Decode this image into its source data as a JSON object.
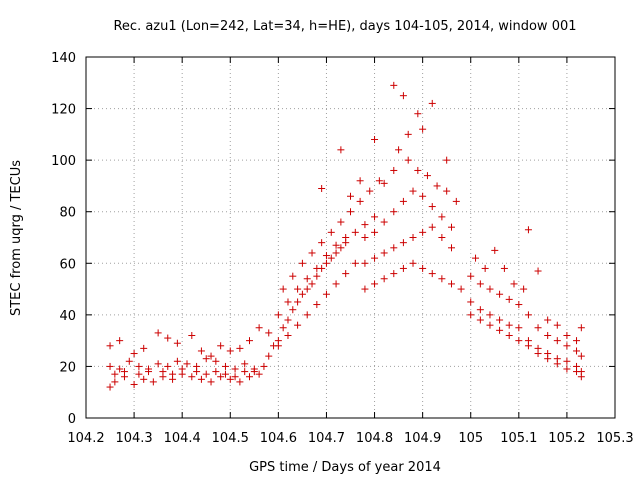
{
  "chart_data": {
    "type": "scatter",
    "title": "Rec. azu1 (Lon=242, Lat=34, h=HE), days 104-105, 2014, window 001",
    "xlabel": "GPS time / Days of year 2014",
    "ylabel": "STEC from uqrg / TECUs",
    "xlim": [
      104.2,
      105.3
    ],
    "ylim": [
      0,
      140
    ],
    "xticks": [
      104.2,
      104.3,
      104.4,
      104.5,
      104.6,
      104.7,
      104.8,
      104.9,
      105,
      105.1,
      105.2,
      105.3
    ],
    "xtick_labels": [
      "104.2",
      "104.3",
      "104.4",
      "104.5",
      "104.6",
      "104.7",
      "104.8",
      "104.9",
      "105",
      "105.1",
      "105.2",
      "105.3"
    ],
    "yticks": [
      0,
      20,
      40,
      60,
      80,
      100,
      120,
      140
    ],
    "ytick_labels": [
      "0",
      "20",
      "40",
      "60",
      "80",
      "100",
      "120",
      "140"
    ],
    "grid": true,
    "marker": "+",
    "color": "#cc0000",
    "series": [
      {
        "points": [
          [
            104.25,
            12
          ],
          [
            104.26,
            14
          ],
          [
            104.28,
            16
          ],
          [
            104.3,
            13
          ],
          [
            104.32,
            15
          ],
          [
            104.34,
            14
          ],
          [
            104.36,
            16
          ],
          [
            104.38,
            15
          ],
          [
            104.4,
            17
          ],
          [
            104.42,
            16
          ],
          [
            104.44,
            15
          ],
          [
            104.46,
            14
          ],
          [
            104.48,
            16
          ],
          [
            104.5,
            15
          ],
          [
            104.52,
            14
          ],
          [
            104.54,
            16
          ],
          [
            104.56,
            17
          ],
          [
            104.57,
            20
          ],
          [
            104.58,
            24
          ],
          [
            104.59,
            28
          ],
          [
            104.25,
            20
          ],
          [
            104.27,
            19
          ],
          [
            104.29,
            22
          ],
          [
            104.31,
            20
          ],
          [
            104.33,
            18
          ],
          [
            104.35,
            21
          ],
          [
            104.37,
            20
          ],
          [
            104.39,
            22
          ],
          [
            104.41,
            21
          ],
          [
            104.43,
            20
          ],
          [
            104.45,
            23
          ],
          [
            104.47,
            22
          ],
          [
            104.49,
            20
          ],
          [
            104.51,
            19
          ],
          [
            104.53,
            21
          ],
          [
            104.55,
            18
          ],
          [
            104.25,
            28
          ],
          [
            104.27,
            30
          ],
          [
            104.3,
            25
          ],
          [
            104.32,
            27
          ],
          [
            104.35,
            33
          ],
          [
            104.37,
            31
          ],
          [
            104.39,
            29
          ],
          [
            104.42,
            32
          ],
          [
            104.44,
            26
          ],
          [
            104.46,
            24
          ],
          [
            104.48,
            28
          ],
          [
            104.5,
            26
          ],
          [
            104.52,
            27
          ],
          [
            104.54,
            30
          ],
          [
            104.56,
            35
          ],
          [
            104.58,
            33
          ],
          [
            104.26,
            17
          ],
          [
            104.28,
            18
          ],
          [
            104.31,
            17
          ],
          [
            104.33,
            19
          ],
          [
            104.36,
            18
          ],
          [
            104.38,
            17
          ],
          [
            104.4,
            19
          ],
          [
            104.43,
            18
          ],
          [
            104.45,
            17
          ],
          [
            104.47,
            18
          ],
          [
            104.49,
            17
          ],
          [
            104.51,
            16
          ],
          [
            104.53,
            18
          ],
          [
            104.55,
            19
          ],
          [
            104.6,
            30
          ],
          [
            104.61,
            35
          ],
          [
            104.62,
            38
          ],
          [
            104.63,
            42
          ],
          [
            104.64,
            45
          ],
          [
            104.65,
            48
          ],
          [
            104.66,
            50
          ],
          [
            104.67,
            52
          ],
          [
            104.68,
            55
          ],
          [
            104.69,
            58
          ],
          [
            104.7,
            60
          ],
          [
            104.71,
            62
          ],
          [
            104.72,
            64
          ],
          [
            104.73,
            66
          ],
          [
            104.74,
            68
          ],
          [
            104.6,
            40
          ],
          [
            104.62,
            45
          ],
          [
            104.64,
            50
          ],
          [
            104.66,
            54
          ],
          [
            104.68,
            58
          ],
          [
            104.7,
            63
          ],
          [
            104.72,
            67
          ],
          [
            104.74,
            70
          ],
          [
            104.76,
            72
          ],
          [
            104.78,
            75
          ],
          [
            104.8,
            78
          ],
          [
            104.61,
            50
          ],
          [
            104.63,
            55
          ],
          [
            104.65,
            60
          ],
          [
            104.67,
            64
          ],
          [
            104.69,
            68
          ],
          [
            104.71,
            72
          ],
          [
            104.73,
            76
          ],
          [
            104.75,
            80
          ],
          [
            104.77,
            84
          ],
          [
            104.79,
            88
          ],
          [
            104.81,
            92
          ],
          [
            104.6,
            28
          ],
          [
            104.62,
            32
          ],
          [
            104.64,
            36
          ],
          [
            104.66,
            40
          ],
          [
            104.68,
            44
          ],
          [
            104.7,
            48
          ],
          [
            104.72,
            52
          ],
          [
            104.74,
            56
          ],
          [
            104.76,
            60
          ],
          [
            104.69,
            89
          ],
          [
            104.73,
            104
          ],
          [
            104.75,
            86
          ],
          [
            104.77,
            92
          ],
          [
            104.8,
            108
          ],
          [
            104.82,
            91
          ],
          [
            104.84,
            96
          ],
          [
            104.85,
            104
          ],
          [
            104.87,
            110
          ],
          [
            104.89,
            118
          ],
          [
            104.9,
            112
          ],
          [
            104.92,
            122
          ],
          [
            104.95,
            100
          ],
          [
            104.84,
            129
          ],
          [
            104.86,
            125
          ],
          [
            104.78,
            60
          ],
          [
            104.8,
            62
          ],
          [
            104.82,
            64
          ],
          [
            104.84,
            66
          ],
          [
            104.86,
            68
          ],
          [
            104.88,
            70
          ],
          [
            104.9,
            72
          ],
          [
            104.92,
            74
          ],
          [
            104.94,
            70
          ],
          [
            104.96,
            66
          ],
          [
            104.78,
            50
          ],
          [
            104.8,
            52
          ],
          [
            104.82,
            54
          ],
          [
            104.84,
            56
          ],
          [
            104.86,
            58
          ],
          [
            104.88,
            60
          ],
          [
            104.9,
            58
          ],
          [
            104.92,
            56
          ],
          [
            104.94,
            54
          ],
          [
            104.96,
            52
          ],
          [
            104.98,
            50
          ],
          [
            104.78,
            70
          ],
          [
            104.8,
            72
          ],
          [
            104.82,
            76
          ],
          [
            104.84,
            80
          ],
          [
            104.86,
            84
          ],
          [
            104.88,
            88
          ],
          [
            104.9,
            86
          ],
          [
            104.92,
            82
          ],
          [
            104.94,
            78
          ],
          [
            104.96,
            74
          ],
          [
            104.87,
            100
          ],
          [
            104.89,
            96
          ],
          [
            104.91,
            94
          ],
          [
            104.93,
            90
          ],
          [
            104.95,
            88
          ],
          [
            104.97,
            84
          ],
          [
            105.0,
            45
          ],
          [
            105.02,
            42
          ],
          [
            105.04,
            40
          ],
          [
            105.06,
            38
          ],
          [
            105.08,
            36
          ],
          [
            105.1,
            35
          ],
          [
            105.12,
            30
          ],
          [
            105.14,
            27
          ],
          [
            105.16,
            25
          ],
          [
            105.18,
            23
          ],
          [
            105.2,
            22
          ],
          [
            105.22,
            20
          ],
          [
            105.23,
            18
          ],
          [
            105.0,
            55
          ],
          [
            105.02,
            52
          ],
          [
            105.04,
            50
          ],
          [
            105.06,
            48
          ],
          [
            105.08,
            46
          ],
          [
            105.1,
            44
          ],
          [
            105.12,
            40
          ],
          [
            105.14,
            35
          ],
          [
            105.16,
            32
          ],
          [
            105.18,
            30
          ],
          [
            105.2,
            28
          ],
          [
            105.22,
            26
          ],
          [
            105.23,
            24
          ],
          [
            105.01,
            62
          ],
          [
            105.03,
            58
          ],
          [
            105.05,
            65
          ],
          [
            105.07,
            58
          ],
          [
            105.09,
            52
          ],
          [
            105.11,
            50
          ],
          [
            105.12,
            73
          ],
          [
            105.14,
            57
          ],
          [
            105.16,
            38
          ],
          [
            105.18,
            36
          ],
          [
            105.2,
            32
          ],
          [
            105.22,
            30
          ],
          [
            105.23,
            35
          ],
          [
            105.0,
            40
          ],
          [
            105.02,
            38
          ],
          [
            105.04,
            36
          ],
          [
            105.06,
            34
          ],
          [
            105.08,
            32
          ],
          [
            105.1,
            30
          ],
          [
            105.12,
            28
          ],
          [
            105.14,
            25
          ],
          [
            105.16,
            23
          ],
          [
            105.18,
            21
          ],
          [
            105.2,
            19
          ],
          [
            105.22,
            18
          ],
          [
            105.23,
            16
          ]
        ]
      }
    ]
  }
}
